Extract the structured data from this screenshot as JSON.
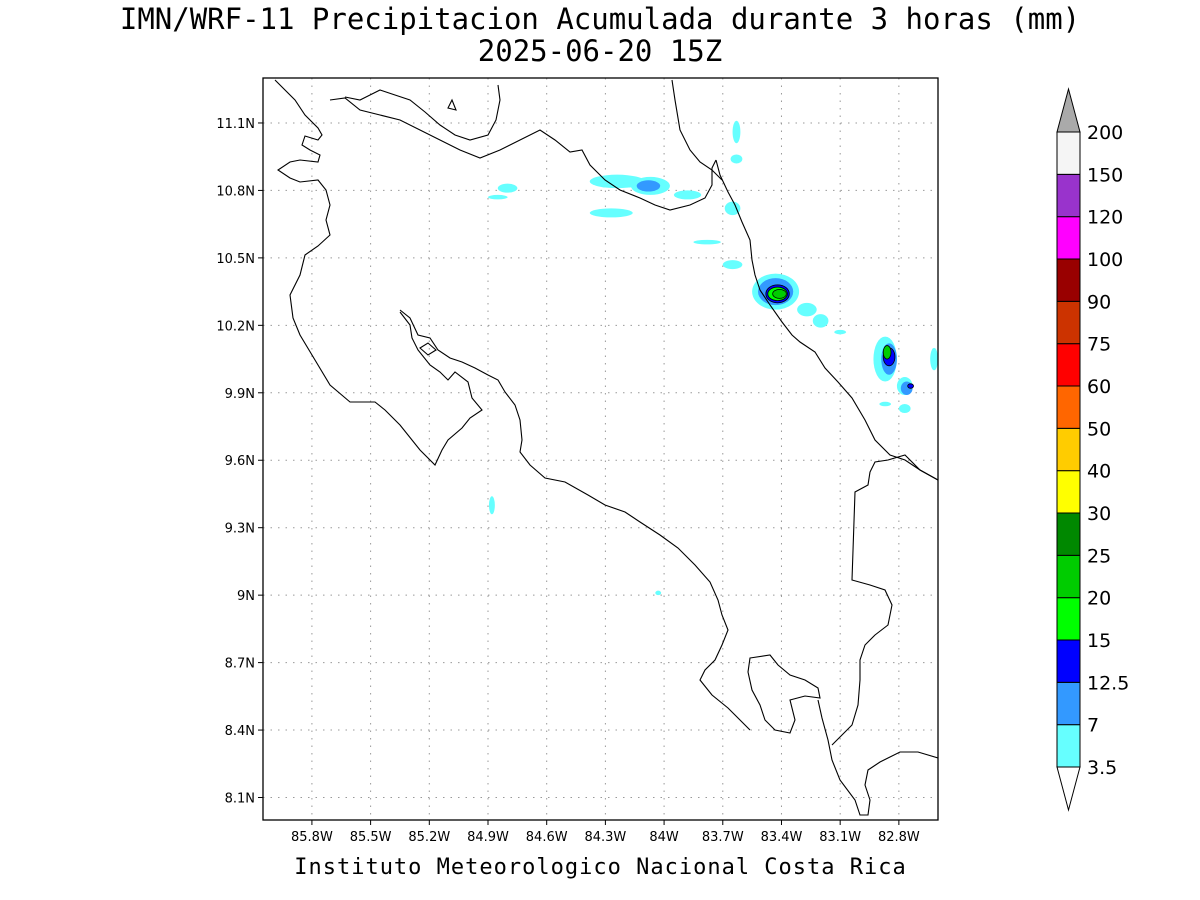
{
  "title_line1": "IMN/WRF-11 Precipitacion Acumulada durante 3 horas (mm)",
  "title_line2": "2025-06-20 15Z",
  "footer": "Instituto Meteorologico Nacional Costa Rica",
  "map": {
    "lon_range": [
      -86.05,
      -82.6
    ],
    "lat_range": [
      8.0,
      11.3
    ],
    "lat_ticks": [
      {
        "value": 11.1,
        "label": "11.1N"
      },
      {
        "value": 10.8,
        "label": "10.8N"
      },
      {
        "value": 10.5,
        "label": "10.5N"
      },
      {
        "value": 10.2,
        "label": "10.2N"
      },
      {
        "value": 9.9,
        "label": "9.9N"
      },
      {
        "value": 9.6,
        "label": "9.6N"
      },
      {
        "value": 9.3,
        "label": "9.3N"
      },
      {
        "value": 9.0,
        "label": "9N"
      },
      {
        "value": 8.7,
        "label": "8.7N"
      },
      {
        "value": 8.4,
        "label": "8.4N"
      },
      {
        "value": 8.1,
        "label": "8.1N"
      }
    ],
    "lon_ticks": [
      {
        "value": -85.8,
        "label": "85.8W"
      },
      {
        "value": -85.5,
        "label": "85.5W"
      },
      {
        "value": -85.2,
        "label": "85.2W"
      },
      {
        "value": -84.9,
        "label": "84.9W"
      },
      {
        "value": -84.6,
        "label": "84.6W"
      },
      {
        "value": -84.3,
        "label": "84.3W"
      },
      {
        "value": -84.0,
        "label": "84W"
      },
      {
        "value": -83.7,
        "label": "83.7W"
      },
      {
        "value": -83.4,
        "label": "83.4W"
      },
      {
        "value": -83.1,
        "label": "83.1W"
      },
      {
        "value": -82.8,
        "label": "82.8W"
      }
    ],
    "grid": true
  },
  "colorbar": {
    "levels": [
      "3.5",
      "7",
      "12.5",
      "15",
      "20",
      "25",
      "30",
      "40",
      "50",
      "60",
      "75",
      "90",
      "100",
      "120",
      "150",
      "200"
    ],
    "colors": [
      "#66ffff",
      "#3399ff",
      "#0000ff",
      "#00ff00",
      "#00cc00",
      "#008800",
      "#ffff00",
      "#ffcc00",
      "#ff6600",
      "#ff0000",
      "#cc3300",
      "#990000",
      "#ff00ff",
      "#9933cc",
      "#f5f5f5"
    ],
    "upper_arrow_color": "#aaaaaa",
    "lower_arrow_color": "#ffffff"
  },
  "precip_cells": [
    {
      "lon": -84.24,
      "lat": 10.84,
      "level": 0,
      "rx": 0.14,
      "ry": 0.03
    },
    {
      "lon": -84.07,
      "lat": 10.82,
      "level": 0,
      "rx": 0.1,
      "ry": 0.04
    },
    {
      "lon": -84.08,
      "lat": 10.82,
      "level": 1,
      "rx": 0.06,
      "ry": 0.025
    },
    {
      "lon": -83.88,
      "lat": 10.78,
      "level": 0,
      "rx": 0.07,
      "ry": 0.02
    },
    {
      "lon": -84.27,
      "lat": 10.7,
      "level": 0,
      "rx": 0.11,
      "ry": 0.02
    },
    {
      "lon": -84.8,
      "lat": 10.81,
      "level": 0,
      "rx": 0.05,
      "ry": 0.02
    },
    {
      "lon": -84.85,
      "lat": 10.77,
      "level": 0,
      "rx": 0.05,
      "ry": 0.01
    },
    {
      "lon": -83.63,
      "lat": 11.06,
      "level": 0,
      "rx": 0.02,
      "ry": 0.05
    },
    {
      "lon": -83.63,
      "lat": 10.94,
      "level": 0,
      "rx": 0.03,
      "ry": 0.02
    },
    {
      "lon": -83.65,
      "lat": 10.72,
      "level": 0,
      "rx": 0.04,
      "ry": 0.03
    },
    {
      "lon": -83.78,
      "lat": 10.57,
      "level": 0,
      "rx": 0.07,
      "ry": 0.01
    },
    {
      "lon": -83.65,
      "lat": 10.47,
      "level": 0,
      "rx": 0.05,
      "ry": 0.02
    },
    {
      "lon": -83.43,
      "lat": 10.35,
      "level": 0,
      "rx": 0.12,
      "ry": 0.08
    },
    {
      "lon": -83.43,
      "lat": 10.35,
      "level": 1,
      "rx": 0.09,
      "ry": 0.06
    },
    {
      "lon": -83.42,
      "lat": 10.34,
      "level": 2,
      "rx": 0.06,
      "ry": 0.04
    },
    {
      "lon": -83.42,
      "lat": 10.34,
      "level": 3,
      "rx": 0.05,
      "ry": 0.03
    },
    {
      "lon": -83.41,
      "lat": 10.34,
      "level": 4,
      "rx": 0.035,
      "ry": 0.02
    },
    {
      "lon": -83.27,
      "lat": 10.27,
      "level": 0,
      "rx": 0.05,
      "ry": 0.03
    },
    {
      "lon": -83.2,
      "lat": 10.22,
      "level": 0,
      "rx": 0.04,
      "ry": 0.03
    },
    {
      "lon": -82.87,
      "lat": 10.05,
      "level": 0,
      "rx": 0.06,
      "ry": 0.1
    },
    {
      "lon": -82.85,
      "lat": 10.05,
      "level": 1,
      "rx": 0.04,
      "ry": 0.07
    },
    {
      "lon": -82.85,
      "lat": 10.06,
      "level": 2,
      "rx": 0.03,
      "ry": 0.04
    },
    {
      "lon": -82.86,
      "lat": 10.08,
      "level": 4,
      "rx": 0.02,
      "ry": 0.03
    },
    {
      "lon": -82.77,
      "lat": 9.93,
      "level": 0,
      "rx": 0.04,
      "ry": 0.04
    },
    {
      "lon": -82.76,
      "lat": 9.92,
      "level": 1,
      "rx": 0.03,
      "ry": 0.03
    },
    {
      "lon": -82.74,
      "lat": 9.93,
      "level": 2,
      "rx": 0.015,
      "ry": 0.01
    },
    {
      "lon": -82.62,
      "lat": 10.05,
      "level": 0,
      "rx": 0.02,
      "ry": 0.05
    },
    {
      "lon": -83.1,
      "lat": 10.17,
      "level": 0,
      "rx": 0.03,
      "ry": 0.01
    },
    {
      "lon": -82.77,
      "lat": 9.83,
      "level": 0,
      "rx": 0.03,
      "ry": 0.02
    },
    {
      "lon": -82.87,
      "lat": 9.85,
      "level": 0,
      "rx": 0.03,
      "ry": 0.01
    },
    {
      "lon": -84.88,
      "lat": 9.4,
      "level": 0,
      "rx": 0.015,
      "ry": 0.04
    },
    {
      "lon": -84.03,
      "lat": 9.01,
      "level": 0,
      "rx": 0.015,
      "ry": 0.01
    }
  ]
}
